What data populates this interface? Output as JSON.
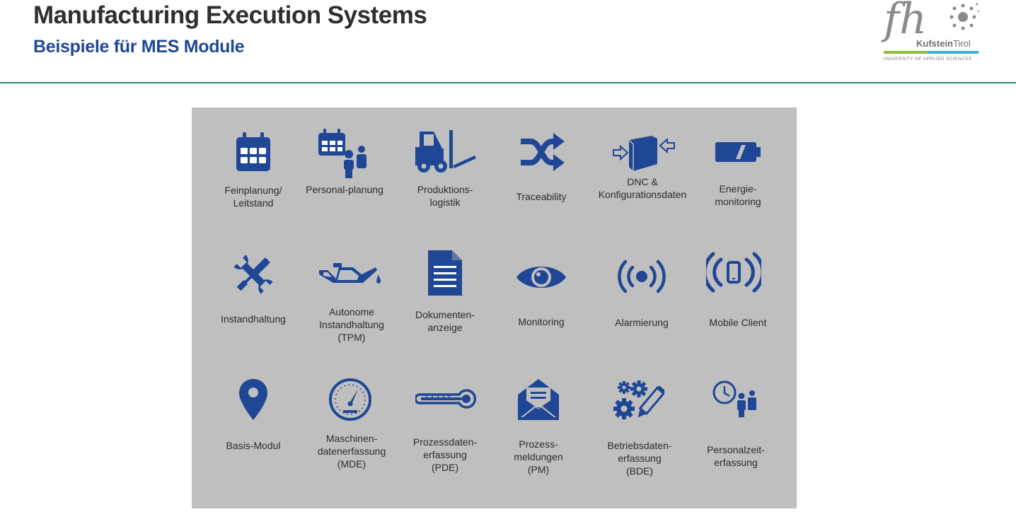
{
  "header": {
    "title": "Manufacturing Execution Systems",
    "subtitle": "Beispiele für MES Module"
  },
  "logo": {
    "mark": "fh",
    "word_bold": "Kufstein",
    "word_light": "Tirol",
    "tagline": "UNIVERSITY OF APPLIED SCIENCES",
    "colors": {
      "green": "#8cbf3f",
      "blue": "#3aaed8",
      "grey": "#8a8a8a"
    }
  },
  "colors": {
    "icon": "#1f4796",
    "panel": "#bfbfbf",
    "rule": "#2f8a6a"
  },
  "modules": [
    {
      "label": "Feinplanung/\nLeitstand",
      "icon": "calendar-icon"
    },
    {
      "label": "Personal-planung",
      "icon": "calendar-person-icon"
    },
    {
      "label": "Produktions-\nlogistik",
      "icon": "forklift-icon"
    },
    {
      "label": "Traceability",
      "icon": "shuffle-icon"
    },
    {
      "label": "DNC &\nKonfigurationsdaten",
      "icon": "folder-transfer-icon"
    },
    {
      "label": "Energie-\nmonitoring",
      "icon": "battery-icon"
    },
    {
      "label": "Instandhaltung",
      "icon": "wrench-screwdriver-icon"
    },
    {
      "label": "Autonome\nInstandhaltung\n(TPM)",
      "icon": "oil-can-icon"
    },
    {
      "label": "Dokumenten-\nanzeige",
      "icon": "document-icon"
    },
    {
      "label": "Monitoring",
      "icon": "eye-icon"
    },
    {
      "label": "Alarmierung",
      "icon": "alarm-signal-icon"
    },
    {
      "label": "Mobile Client",
      "icon": "mobile-signal-icon"
    },
    {
      "label": "Basis-Modul",
      "icon": "map-pin-icon"
    },
    {
      "label": "Maschinen-\ndatenerfassung\n(MDE)",
      "icon": "gauge-icon"
    },
    {
      "label": "Prozessdaten-\nerfassung\n(PDE)",
      "icon": "thermometer-icon"
    },
    {
      "label": "Prozess-\nmeldungen\n(PM)",
      "icon": "envelope-icon"
    },
    {
      "label": "Betriebsdaten-\nerfassung\n(BDE)",
      "icon": "gears-pencil-icon"
    },
    {
      "label": "Personalzeit-\nerfassung",
      "icon": "clock-people-icon"
    }
  ]
}
